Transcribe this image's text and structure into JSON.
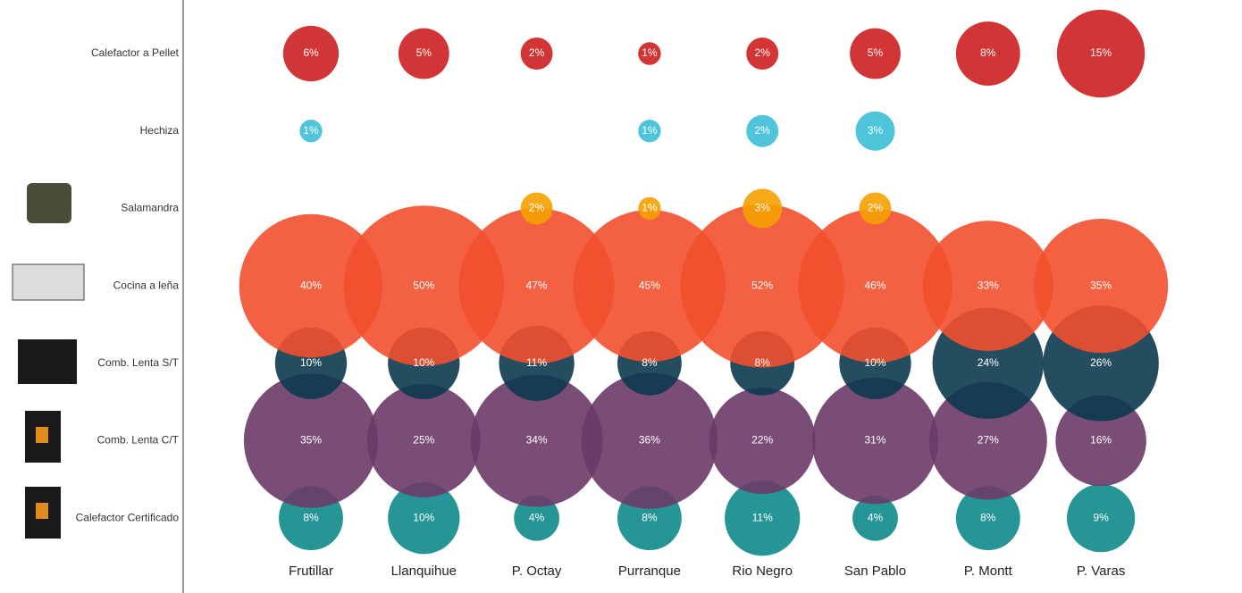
{
  "chart_data": {
    "type": "bubble-matrix",
    "categories": [
      "Frutillar",
      "Llanquihue",
      "P. Octay",
      "Purranque",
      "Rio Negro",
      "San Pablo",
      "P. Montt",
      "P. Varas"
    ],
    "series": [
      {
        "name": "Calefactor a Pellet",
        "color": "#cc1f1f",
        "values": [
          6,
          5,
          2,
          1,
          2,
          5,
          8,
          15
        ],
        "value_labels": [
          "6%",
          "5%",
          "2%",
          "1%",
          "2%",
          "5%",
          "8%",
          "15%"
        ]
      },
      {
        "name": "Hechiza",
        "color": "#3bbfd6",
        "values": [
          1,
          null,
          null,
          1,
          2,
          3,
          null,
          null
        ],
        "value_labels": [
          "1%",
          null,
          null,
          "1%",
          "2%",
          "3%",
          null,
          null
        ]
      },
      {
        "name": "Salamandra",
        "color": "#f5a000",
        "values": [
          null,
          null,
          2,
          1,
          3,
          2,
          null,
          null
        ],
        "value_labels": [
          null,
          null,
          "2%",
          "1%",
          "3%",
          "2%",
          null,
          null
        ]
      },
      {
        "name": "Cocina a leña",
        "color": "#f2502e",
        "values": [
          40,
          50,
          47,
          45,
          52,
          46,
          33,
          35
        ],
        "value_labels": [
          "40%",
          "50%",
          "47%",
          "45%",
          "52%",
          "46%",
          "33%",
          "35%"
        ]
      },
      {
        "name": "Comb. Lenta S/T",
        "color": "#0c3a4e",
        "values": [
          10,
          10,
          11,
          8,
          8,
          10,
          24,
          26
        ],
        "value_labels": [
          "10%",
          "10%",
          "11%",
          "8%",
          "8%",
          "10%",
          "24%",
          "26%"
        ]
      },
      {
        "name": "Comb. Lenta C/T",
        "color": "#6b3a68",
        "values": [
          35,
          25,
          34,
          36,
          22,
          31,
          27,
          16
        ],
        "value_labels": [
          "35%",
          "25%",
          "34%",
          "36%",
          "22%",
          "31%",
          "27%",
          "16%"
        ]
      },
      {
        "name": "Calefactor Certificado",
        "color": "#0e8a8a",
        "values": [
          8,
          10,
          4,
          8,
          11,
          4,
          8,
          9
        ],
        "value_labels": [
          "8%",
          "10%",
          "4%",
          "8%",
          "11%",
          "4%",
          "8%",
          "9%"
        ]
      }
    ]
  }
}
